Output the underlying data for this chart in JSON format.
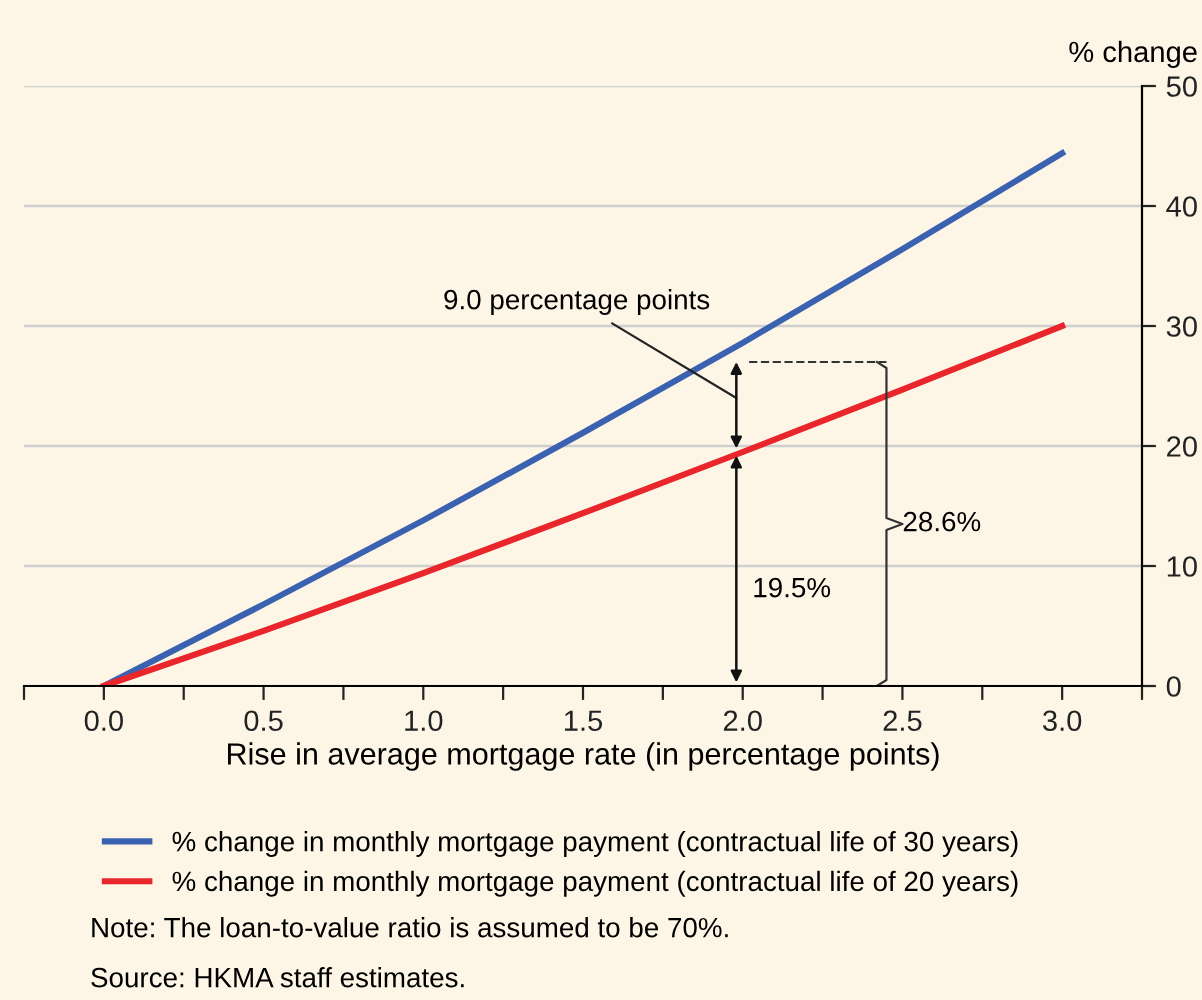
{
  "chart_data": {
    "type": "line",
    "x": [
      0.0,
      0.5,
      1.0,
      1.5,
      2.0,
      2.5,
      3.0
    ],
    "series": [
      {
        "name": "% change in monthly mortgage payment (contractual life of 30 years)",
        "color": "#3a62b0",
        "values": [
          0,
          6.8,
          13.8,
          21.1,
          28.6,
          36.4,
          44.4
        ]
      },
      {
        "name": "% change in monthly mortgage payment (contractual life of 20 years)",
        "color": "#e8262b",
        "values": [
          0,
          4.6,
          9.4,
          14.4,
          19.5,
          24.7,
          30.0
        ]
      }
    ],
    "xlabel": "Rise in average mortgage rate (in percentage points)",
    "ylabel": "% change",
    "xlim": [
      -0.25,
      3.25
    ],
    "xticks": [
      {
        "value": -0.25,
        "label": null
      },
      {
        "value": 0.0,
        "label": "0.0"
      },
      {
        "value": 0.25,
        "label": null
      },
      {
        "value": 0.5,
        "label": "0.5"
      },
      {
        "value": 0.75,
        "label": null
      },
      {
        "value": 1.0,
        "label": "1.0"
      },
      {
        "value": 1.25,
        "label": null
      },
      {
        "value": 1.5,
        "label": "1.5"
      },
      {
        "value": 1.75,
        "label": null
      },
      {
        "value": 2.0,
        "label": "2.0"
      },
      {
        "value": 2.25,
        "label": null
      },
      {
        "value": 2.5,
        "label": "2.5"
      },
      {
        "value": 2.75,
        "label": null
      },
      {
        "value": 3.0,
        "label": "3.0"
      },
      {
        "value": 3.25,
        "label": null
      }
    ],
    "ylim": [
      0,
      50
    ],
    "yticks": [
      0,
      10,
      20,
      30,
      40,
      50
    ],
    "grid": "y",
    "legend": "bottom",
    "line_style": "solid",
    "annotations": [
      "9.0 percentage points",
      "19.5%",
      "28.6%",
      "Note: The loan-to-value ratio is assumed to be 70%.",
      "Source: HKMA staff estimates."
    ]
  }
}
